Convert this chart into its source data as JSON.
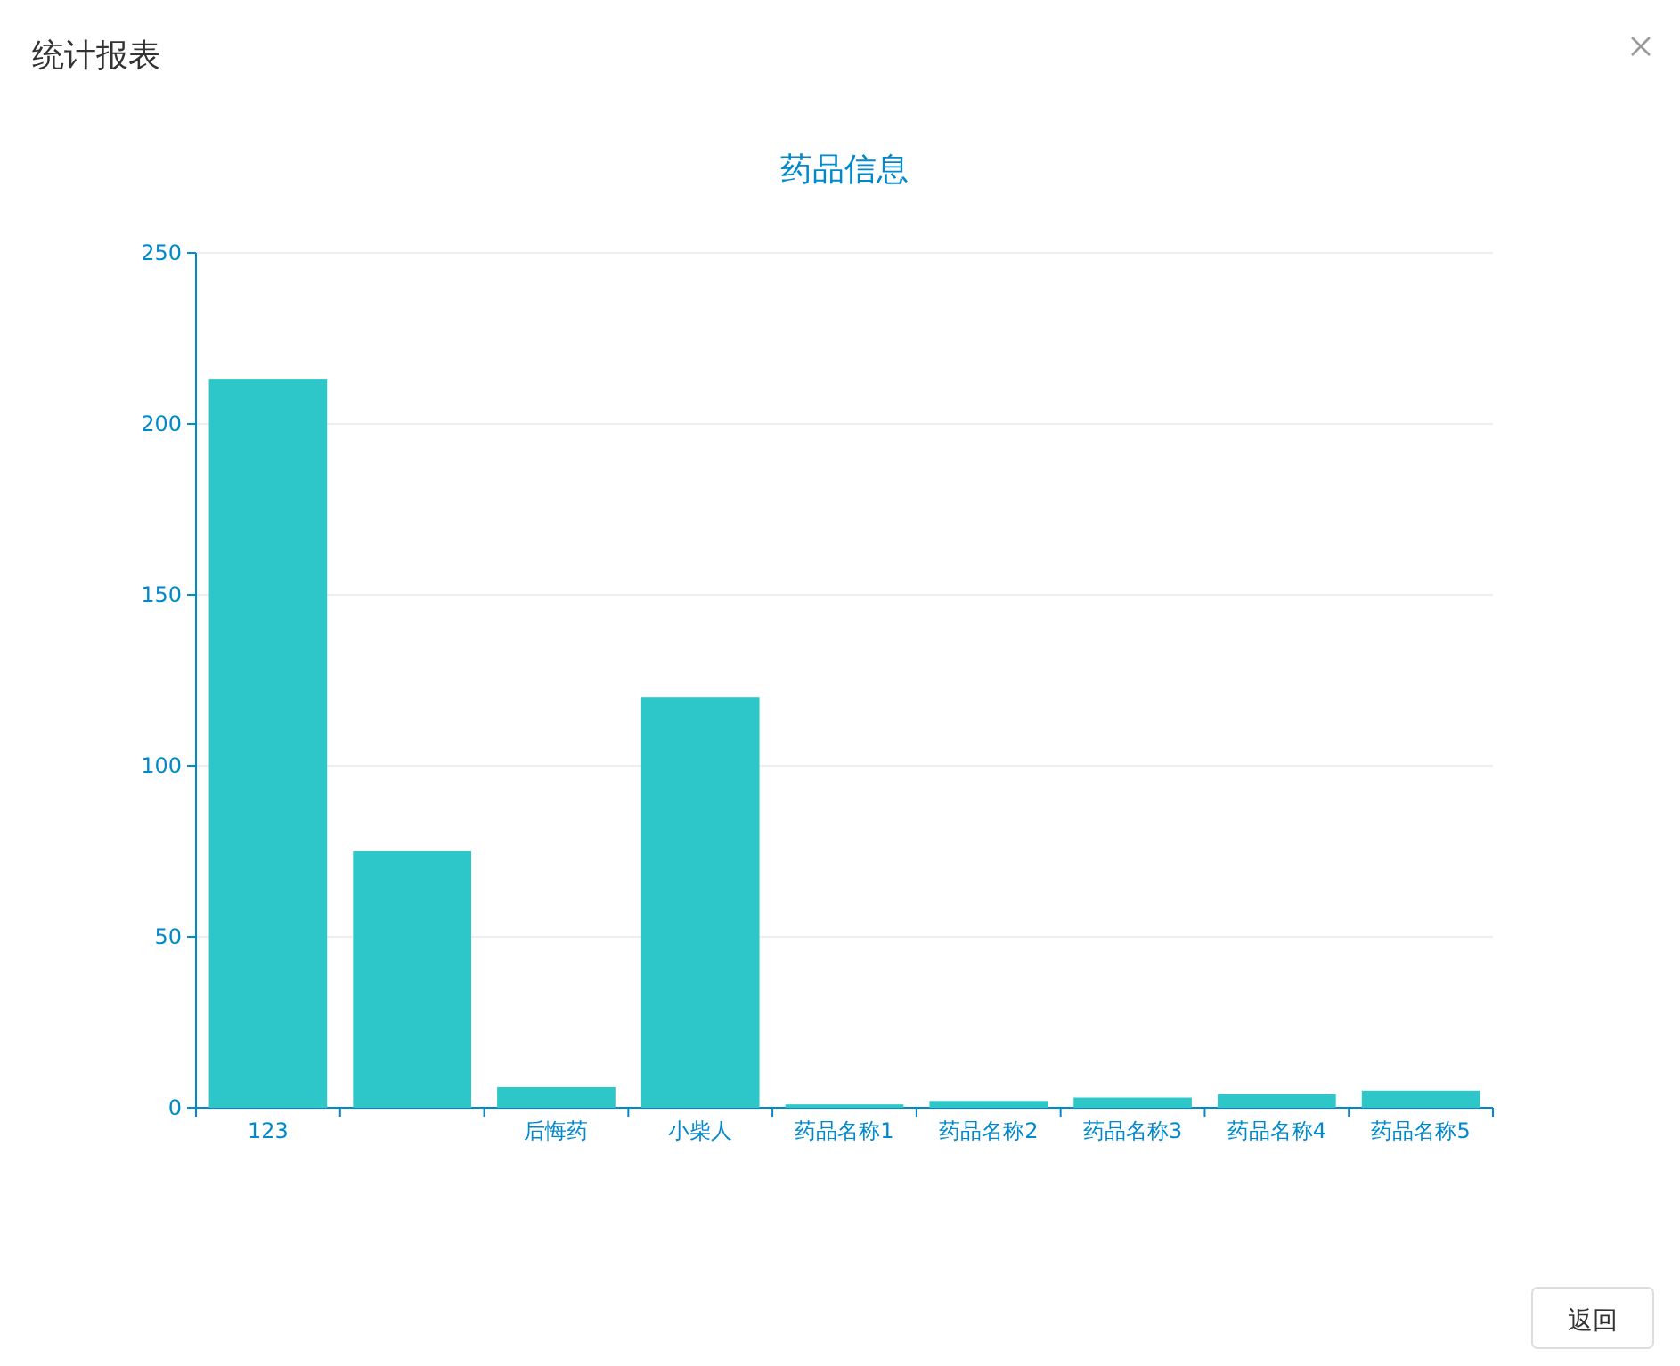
{
  "chart_data": {
    "type": "bar",
    "title": "药品信息",
    "annotations": [
      "统计报表",
      "返回"
    ],
    "categories": [
      "123",
      null,
      "后悔药",
      "小柴人",
      "药品名称1",
      "药品名称2",
      "药品名称3",
      "药品名称4",
      "药品名称5"
    ],
    "values": [
      213,
      75,
      6,
      120,
      1,
      2,
      3,
      4,
      5
    ],
    "color": "#2ec7c9",
    "ylim": [
      0,
      250
    ],
    "yticks": [
      0,
      50,
      100,
      150,
      200,
      250
    ],
    "grid": "y"
  }
}
